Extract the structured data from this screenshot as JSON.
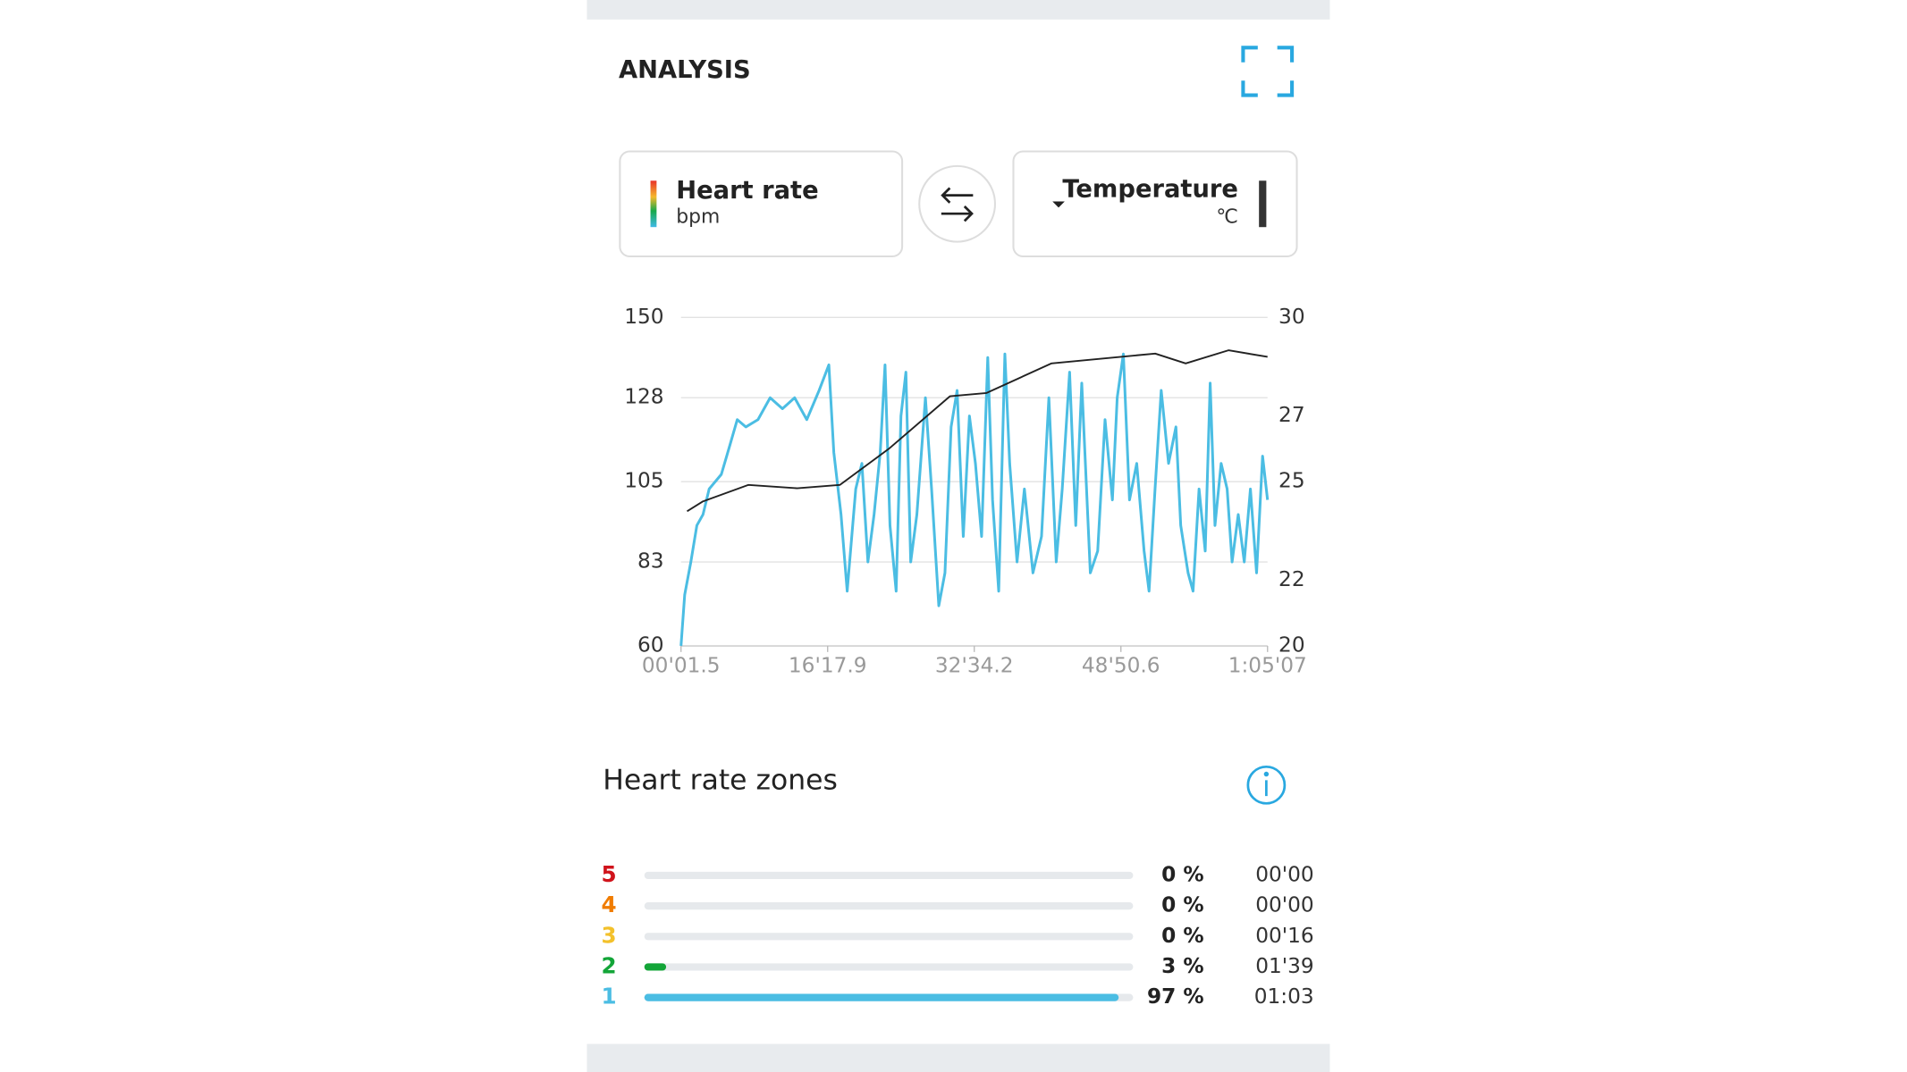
{
  "header": {
    "title": "ANALYSIS"
  },
  "selectors": {
    "left": {
      "title": "Heart rate",
      "unit": "bpm"
    },
    "right": {
      "title": "Temperature",
      "unit": "℃"
    }
  },
  "chart_data": {
    "type": "line",
    "xlim": [
      1.5,
      3907
    ],
    "xticks": [
      {
        "value": 1.5,
        "label": "00'01.5"
      },
      {
        "value": 977.9,
        "label": "16'17.9"
      },
      {
        "value": 1954.2,
        "label": "32'34.2"
      },
      {
        "value": 2930.6,
        "label": "48'50.6"
      },
      {
        "value": 3907,
        "label": "1:05'07"
      }
    ],
    "ylim": [
      60,
      150
    ],
    "yticks": [
      60,
      83,
      105,
      128,
      150
    ],
    "y2lim": [
      20,
      30
    ],
    "y2ticks": [
      20,
      22,
      25,
      27,
      30
    ],
    "grid": true,
    "series": [
      {
        "name": "Heart rate",
        "color": "#4bbde3",
        "x": [
          1.5,
          26,
          67,
          107,
          148,
          189,
          270,
          327,
          376,
          433,
          514,
          595,
          677,
          758,
          839,
          921,
          986,
          1019,
          1067,
          1108,
          1165,
          1206,
          1246,
          1287,
          1328,
          1360,
          1393,
          1434,
          1466,
          1499,
          1531,
          1572,
          1629,
          1670,
          1718,
          1759,
          1800,
          1840,
          1881,
          1922,
          1962,
          2003,
          2044,
          2076,
          2117,
          2158,
          2190,
          2239,
          2288,
          2345,
          2402,
          2451,
          2500,
          2540,
          2589,
          2630,
          2670,
          2727,
          2776,
          2825,
          2874,
          2906,
          2947,
          2988,
          3036,
          3085,
          3118,
          3158,
          3199,
          3248,
          3297,
          3329,
          3378,
          3411,
          3451,
          3492,
          3525,
          3557,
          3598,
          3638,
          3671,
          3712,
          3752,
          3793,
          3834,
          3874,
          3907
        ],
        "values": [
          60,
          74,
          83,
          93,
          96,
          103,
          107,
          115,
          122,
          120,
          122,
          128,
          125,
          128,
          122,
          130,
          137,
          113,
          96,
          75,
          103,
          110,
          83,
          96,
          113,
          137,
          93,
          75,
          123,
          135,
          83,
          96,
          128,
          103,
          71,
          80,
          120,
          130,
          90,
          123,
          110,
          90,
          139,
          100,
          75,
          140,
          110,
          83,
          103,
          80,
          90,
          128,
          83,
          103,
          135,
          93,
          132,
          80,
          86,
          122,
          100,
          128,
          140,
          100,
          110,
          86,
          75,
          103,
          130,
          110,
          120,
          93,
          80,
          75,
          103,
          86,
          132,
          93,
          110,
          103,
          83,
          96,
          83,
          103,
          80,
          112,
          100
        ]
      },
      {
        "name": "Temperature",
        "color": "#222222",
        "axis": "y2",
        "x": [
          42,
          148,
          449,
          775,
          1059,
          1385,
          1792,
          2036,
          2467,
          3159,
          3362,
          3647,
          3907
        ],
        "values": [
          24.1,
          24.4,
          24.9,
          24.8,
          24.9,
          26.0,
          27.6,
          27.7,
          28.6,
          28.9,
          28.6,
          29.0,
          28.8
        ]
      }
    ]
  },
  "zones": {
    "title": "Heart rate zones",
    "rows": [
      {
        "label": "5",
        "color": "#d0131b",
        "value": 0,
        "value_label": "0 %",
        "time": "00'00"
      },
      {
        "label": "4",
        "color": "#f07c00",
        "value": 0,
        "value_label": "0 %",
        "time": "00'00"
      },
      {
        "label": "3",
        "color": "#f3c12b",
        "value": 0,
        "value_label": "0 %",
        "time": "00'16"
      },
      {
        "label": "2",
        "color": "#13a538",
        "value": 3,
        "value_label": "3 %",
        "time": "01'39"
      },
      {
        "label": "1",
        "color": "#4bbde3",
        "value": 97,
        "value_label": "97 %",
        "time": "01:03"
      }
    ]
  }
}
